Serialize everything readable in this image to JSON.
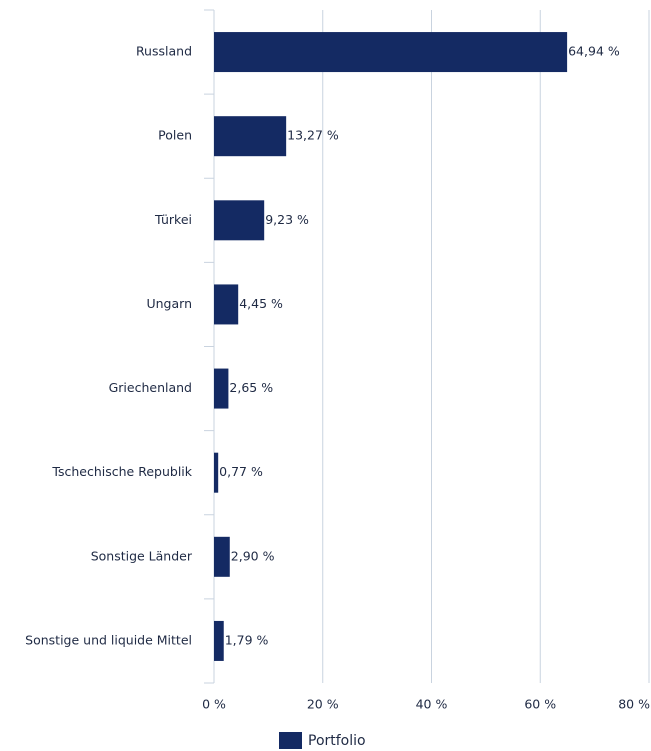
{
  "chart_data": {
    "type": "barh",
    "categories": [
      "Russland",
      "Polen",
      "Türkei",
      "Ungarn",
      "Griechenland",
      "Tschechische Republik",
      "Sonstige Länder",
      "Sonstige und liquide Mittel"
    ],
    "series": [
      {
        "name": "Portfolio",
        "color": "#142a63",
        "values": [
          64.94,
          13.27,
          9.23,
          4.45,
          2.65,
          0.77,
          2.9,
          1.79
        ],
        "value_labels": [
          "64,94 %",
          "13,27 %",
          "9,23 %",
          "4,45 %",
          "2,65 %",
          "0,77 %",
          "2,90 %",
          "1,79 %"
        ]
      }
    ],
    "xlim": [
      0,
      80
    ],
    "xticks": [
      {
        "value": 0,
        "label": "0 %"
      },
      {
        "value": 20,
        "label": "20 %"
      },
      {
        "value": 40,
        "label": "40 %"
      },
      {
        "value": 60,
        "label": "60 %"
      },
      {
        "value": 80,
        "label": "80 %"
      }
    ],
    "grid": true
  }
}
